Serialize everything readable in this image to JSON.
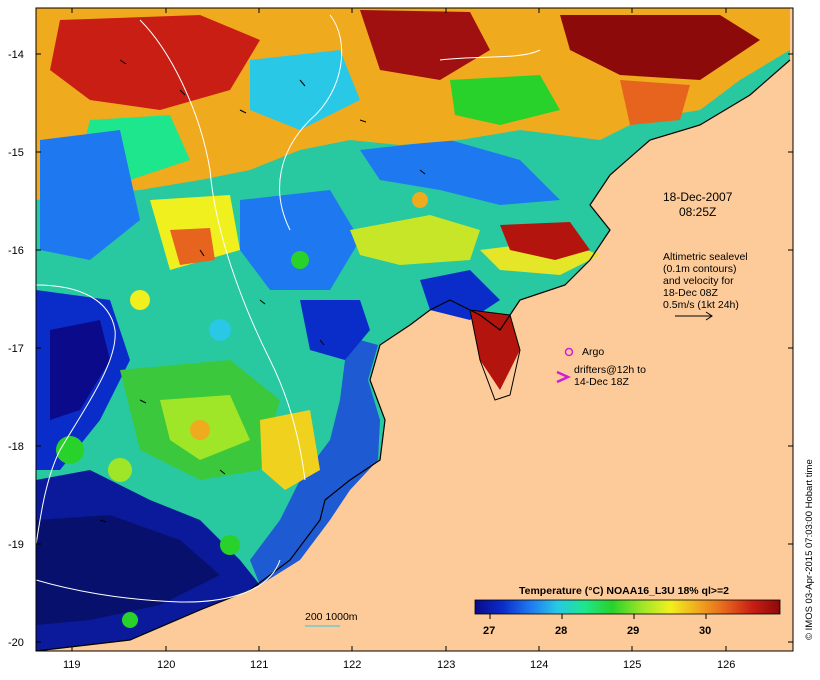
{
  "map": {
    "datetime_line1": "18-Dec-2007",
    "datetime_line2": "08:25Z",
    "colors": {
      "land": "#fdcb9a",
      "frame": "#000000"
    }
  },
  "axes": {
    "x_ticks": [
      "119",
      "120",
      "121",
      "122",
      "123",
      "124",
      "125",
      "126"
    ],
    "y_ticks": [
      "-14",
      "-15",
      "-16",
      "-17",
      "-18",
      "-19",
      "-20"
    ]
  },
  "annotations": {
    "altimetry": [
      "Altimetric sealevel",
      "(0.1m contours)",
      "and velocity for",
      "18-Dec 08Z",
      "0.5m/s (1kt 24h)"
    ],
    "argo_label": "Argo",
    "drifters": [
      "drifters@12h to",
      "14-Dec 18Z"
    ],
    "depth_contours": "200  1000m"
  },
  "colorbar": {
    "title": "Temperature (°C) NOAA16_L3U 18% ql>=2",
    "ticks": [
      "27",
      "28",
      "29",
      "30"
    ],
    "colors": [
      "#0a0a8a",
      "#0a2cc8",
      "#1e78f0",
      "#28c8e6",
      "#1ee68c",
      "#28d22a",
      "#a0e628",
      "#f0f01e",
      "#f0aa1e",
      "#e6641e",
      "#c81e14",
      "#8c0a0a"
    ]
  },
  "credit": "© IMOS 03-Apr-2015 07:03:00 Hobart time"
}
